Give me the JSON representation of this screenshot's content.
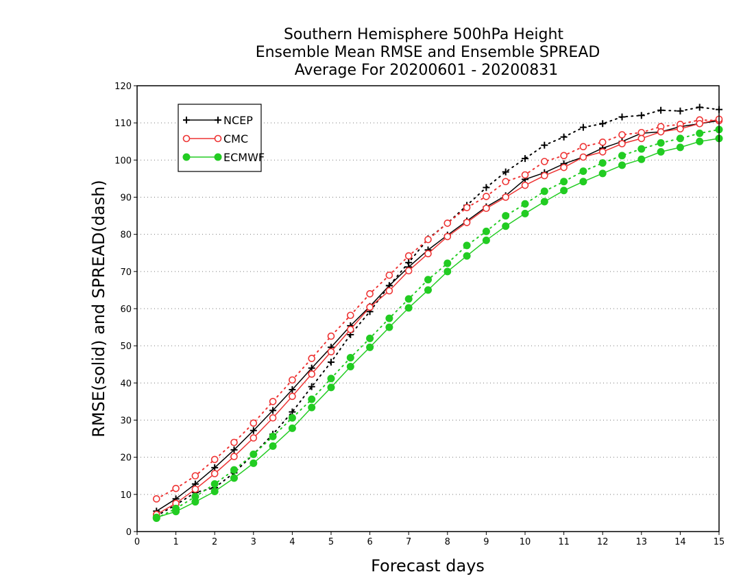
{
  "chart_data": {
    "type": "line",
    "title": [
      "Southern Hemisphere 500hPa Height",
      "Ensemble Mean RMSE and Ensemble SPREAD",
      "Average For 20200601 - 20200831"
    ],
    "xlabel": "Forecast days",
    "ylabel": "RMSE(solid) and SPREAD(dash)",
    "xlim": [
      0,
      15
    ],
    "ylim": [
      0,
      120
    ],
    "xticks": [
      0,
      1,
      2,
      3,
      4,
      5,
      6,
      7,
      8,
      9,
      10,
      11,
      12,
      13,
      14,
      15
    ],
    "yticks": [
      0,
      10,
      20,
      30,
      40,
      50,
      60,
      70,
      80,
      90,
      100,
      110,
      120
    ],
    "grid": "horizontal-dotted",
    "legend_position": "top-left",
    "x": [
      0.5,
      1,
      1.5,
      2,
      2.5,
      3,
      3.5,
      4,
      4.5,
      5,
      5.5,
      6,
      6.5,
      7,
      7.5,
      8,
      8.5,
      9,
      9.5,
      10,
      10.5,
      11,
      11.5,
      12,
      12.5,
      13,
      13.5,
      14,
      14.5,
      15
    ],
    "series": [
      {
        "name": "NCEP",
        "color": "#000000",
        "marker": "plus",
        "rmse": [
          5.5,
          8.8,
          12.8,
          17.2,
          22.0,
          27.2,
          32.6,
          38.2,
          44.0,
          49.6,
          55.4,
          60.6,
          66.2,
          71.2,
          75.8,
          79.8,
          83.6,
          87.4,
          90.4,
          94.8,
          96.6,
          99.0,
          100.8,
          103.2,
          105.0,
          107.2,
          107.6,
          109.0,
          109.8,
          110.6
        ],
        "spread": [
          4.2,
          7.2,
          10.5,
          11.8,
          15.8,
          20.8,
          26.2,
          32.2,
          39.0,
          45.6,
          53.0,
          59.2,
          66.2,
          72.4,
          78.8,
          83.0,
          87.8,
          92.6,
          96.8,
          100.4,
          104.0,
          106.2,
          108.8,
          109.8,
          111.6,
          112.0,
          113.4,
          113.2,
          114.2,
          113.6
        ]
      },
      {
        "name": "CMC",
        "color": "#ee3333",
        "marker": "open-circle",
        "rmse": [
          4.6,
          7.6,
          11.4,
          15.6,
          20.2,
          25.2,
          30.6,
          36.4,
          42.4,
          48.4,
          54.4,
          60.4,
          64.8,
          70.2,
          74.8,
          79.4,
          83.2,
          87.0,
          90.0,
          93.2,
          95.8,
          98.0,
          100.8,
          102.2,
          104.4,
          105.8,
          107.6,
          108.4,
          109.8,
          111.0
        ],
        "spread": [
          8.8,
          11.6,
          15.0,
          19.4,
          24.0,
          29.2,
          35.0,
          40.8,
          46.6,
          52.6,
          58.2,
          64.0,
          69.0,
          74.2,
          78.6,
          83.0,
          87.2,
          90.2,
          94.2,
          96.0,
          99.6,
          101.2,
          103.6,
          104.8,
          106.8,
          107.4,
          109.0,
          109.6,
          110.8,
          110.6
        ]
      },
      {
        "name": "ECMWF",
        "color": "#22cc22",
        "marker": "filled-circle",
        "rmse": [
          3.8,
          5.4,
          8.0,
          10.8,
          14.4,
          18.4,
          23.0,
          27.8,
          33.4,
          38.8,
          44.4,
          49.6,
          55.0,
          60.2,
          65.0,
          70.0,
          74.2,
          78.4,
          82.2,
          85.6,
          88.8,
          91.8,
          94.2,
          96.4,
          98.6,
          100.2,
          102.2,
          103.4,
          105.0,
          105.8
        ],
        "spread": [
          3.6,
          6.2,
          9.4,
          12.8,
          16.6,
          20.8,
          25.6,
          30.6,
          35.6,
          41.2,
          46.8,
          52.0,
          57.4,
          62.6,
          67.8,
          72.2,
          77.0,
          80.8,
          85.0,
          88.2,
          91.6,
          94.2,
          97.0,
          99.2,
          101.2,
          103.0,
          104.6,
          105.8,
          107.2,
          108.2
        ]
      }
    ]
  }
}
